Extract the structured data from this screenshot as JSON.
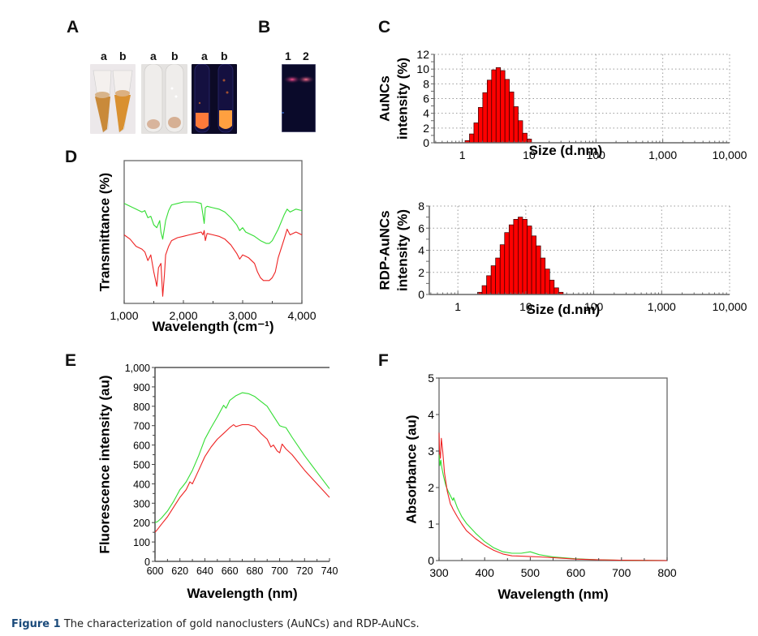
{
  "panels": {
    "A": {
      "letter": "A",
      "photos": [
        {
          "labels": [
            "a",
            "b"
          ],
          "description": "tubes in daylight, orange-brown solutions"
        },
        {
          "labels": [
            "a",
            "b"
          ],
          "description": "tubes with pale precipitate"
        },
        {
          "labels": [
            "a",
            "b"
          ],
          "description": "tubes under UV light, orange fluorescence"
        }
      ]
    },
    "B": {
      "letter": "B",
      "lane_labels": [
        "1",
        "2"
      ],
      "description": "gel with pink bands under UV"
    },
    "C": {
      "letter": "C"
    },
    "D": {
      "letter": "D"
    },
    "E": {
      "letter": "E"
    },
    "F": {
      "letter": "F"
    }
  },
  "caption": {
    "label": "Figure 1",
    "text": "The characterization of gold nanoclusters (AuNCs) and RDP-AuNCs."
  },
  "colors": {
    "bar_fill": "#ff0000",
    "bar_edge": "#330000",
    "green_series": "#33dd33",
    "red_series": "#ee2222",
    "axis": "#666666",
    "grid": "#999999"
  },
  "chart_data": [
    {
      "id": "C-top",
      "type": "bar",
      "title": "",
      "xlabel": "Size (d.nm)",
      "ylabel_lines": [
        "AuNCs",
        "intensity (%)"
      ],
      "xscale": "log",
      "xlim": [
        0.38,
        10000
      ],
      "ylim": [
        0,
        12
      ],
      "xticks": [
        1,
        10,
        100,
        1000,
        10000
      ],
      "xtick_labels": [
        "1",
        "10",
        "100",
        "1,000",
        "10,000"
      ],
      "yticks": [
        0,
        2,
        4,
        6,
        8,
        10,
        12
      ],
      "ytick_labels": [
        "0",
        "2",
        "4",
        "6",
        "8",
        "10",
        "12"
      ],
      "grid": true,
      "bin_start": 1.1,
      "bin_ratio": 1.165,
      "values": [
        0.3,
        1.2,
        2.7,
        4.8,
        6.8,
        8.5,
        9.9,
        10.2,
        9.8,
        8.6,
        6.9,
        4.9,
        3.0,
        1.3,
        0.5
      ]
    },
    {
      "id": "C-bottom",
      "type": "bar",
      "title": "",
      "xlabel": "Size (d.nm)",
      "ylabel_lines": [
        "RDP-AuNCs",
        "intensity (%)"
      ],
      "xscale": "log",
      "xlim": [
        0.38,
        10000
      ],
      "ylim": [
        0,
        8
      ],
      "xticks": [
        1,
        10,
        100,
        1000,
        10000
      ],
      "xtick_labels": [
        "1",
        "10",
        "100",
        "1,000",
        "10,000"
      ],
      "yticks": [
        0,
        2,
        4,
        6,
        8
      ],
      "ytick_labels": [
        "0",
        "2",
        "4",
        "6",
        "8"
      ],
      "grid": true,
      "bin_start": 1.95,
      "bin_ratio": 1.165,
      "values": [
        0.2,
        0.8,
        1.7,
        2.6,
        3.3,
        4.5,
        5.6,
        6.3,
        6.8,
        7.0,
        6.8,
        6.2,
        5.3,
        4.4,
        3.3,
        2.3,
        1.3,
        0.6,
        0.2
      ]
    },
    {
      "id": "D",
      "type": "line",
      "title": "",
      "xlabel": "Wavelength (cm⁻¹)",
      "ylabel": "Transmittance (%)",
      "xlim": [
        1000,
        4000
      ],
      "ylim": [
        0,
        100
      ],
      "xticks": [
        1000,
        2000,
        3000,
        4000
      ],
      "xtick_labels": [
        "1,000",
        "2,000",
        "3,000",
        "4,000"
      ],
      "yticks": [],
      "grid": false,
      "series": [
        {
          "name": "green",
          "color": "#33dd33",
          "x": [
            1000,
            1100,
            1200,
            1300,
            1350,
            1400,
            1450,
            1500,
            1550,
            1600,
            1620,
            1650,
            1700,
            1750,
            1800,
            1900,
            2000,
            2100,
            2200,
            2300,
            2330,
            2350,
            2370,
            2400,
            2500,
            2600,
            2700,
            2800,
            2900,
            2950,
            3000,
            3050,
            3100,
            3200,
            3300,
            3400,
            3450,
            3500,
            3600,
            3700,
            3750,
            3800,
            3900,
            4000
          ],
          "y": [
            70,
            68,
            66,
            64,
            65,
            60,
            61,
            55,
            53,
            58,
            50,
            45,
            58,
            65,
            69,
            70,
            71,
            71,
            71,
            70,
            62,
            56,
            67,
            68,
            67,
            66,
            64,
            60,
            55,
            51,
            53,
            50,
            49,
            47,
            44,
            42,
            42,
            44,
            52,
            62,
            66,
            64,
            66,
            65
          ]
        },
        {
          "name": "red",
          "color": "#ee2222",
          "x": [
            1000,
            1100,
            1200,
            1300,
            1350,
            1400,
            1450,
            1500,
            1520,
            1550,
            1580,
            1620,
            1650,
            1680,
            1700,
            1750,
            1800,
            1900,
            2000,
            2100,
            2200,
            2300,
            2330,
            2350,
            2370,
            2400,
            2500,
            2600,
            2700,
            2800,
            2900,
            2950,
            3000,
            3050,
            3100,
            3200,
            3250,
            3300,
            3350,
            3400,
            3450,
            3500,
            3550,
            3600,
            3700,
            3750,
            3800,
            3900,
            4000
          ],
          "y": [
            48,
            45,
            40,
            38,
            36,
            30,
            34,
            22,
            18,
            12,
            25,
            28,
            5,
            20,
            34,
            40,
            44,
            46,
            47,
            48,
            49,
            50,
            48,
            51,
            44,
            49,
            48,
            47,
            45,
            41,
            35,
            31,
            34,
            33,
            32,
            28,
            22,
            18,
            16,
            16,
            16,
            18,
            22,
            32,
            45,
            52,
            48,
            50,
            48
          ]
        }
      ]
    },
    {
      "id": "E",
      "type": "line",
      "title": "",
      "xlabel": "Wavelength (nm)",
      "ylabel": "Fluorescence intensity (au)",
      "xlim": [
        600,
        740
      ],
      "ylim": [
        0,
        1000
      ],
      "xticks": [
        600,
        620,
        640,
        660,
        680,
        700,
        720,
        740
      ],
      "xtick_labels": [
        "600",
        "620",
        "640",
        "660",
        "680",
        "700",
        "720",
        "740"
      ],
      "yticks": [
        0,
        100,
        200,
        300,
        400,
        500,
        600,
        700,
        800,
        900,
        1000
      ],
      "ytick_labels": [
        "0",
        "100",
        "200",
        "300",
        "400",
        "500",
        "600",
        "700",
        "800",
        "900",
        "1,000"
      ],
      "grid": false,
      "series": [
        {
          "name": "green",
          "color": "#33dd33",
          "x": [
            600,
            602,
            605,
            610,
            615,
            620,
            622,
            625,
            630,
            635,
            640,
            645,
            650,
            655,
            657,
            660,
            665,
            670,
            675,
            680,
            685,
            690,
            695,
            700,
            702,
            705,
            710,
            720,
            730,
            740
          ],
          "y": [
            200,
            205,
            222,
            260,
            310,
            370,
            385,
            410,
            470,
            545,
            630,
            690,
            745,
            805,
            790,
            830,
            855,
            870,
            865,
            850,
            825,
            800,
            750,
            700,
            695,
            690,
            640,
            545,
            460,
            375
          ]
        },
        {
          "name": "red",
          "color": "#ee2222",
          "x": [
            600,
            602,
            605,
            610,
            615,
            620,
            625,
            628,
            630,
            635,
            640,
            645,
            650,
            655,
            660,
            663,
            665,
            670,
            675,
            680,
            685,
            690,
            693,
            695,
            698,
            700,
            702,
            705,
            710,
            720,
            730,
            740
          ],
          "y": [
            150,
            165,
            190,
            230,
            280,
            330,
            370,
            410,
            400,
            470,
            540,
            590,
            630,
            660,
            690,
            705,
            695,
            705,
            705,
            695,
            660,
            630,
            590,
            600,
            570,
            560,
            605,
            580,
            550,
            470,
            400,
            330
          ]
        }
      ]
    },
    {
      "id": "F",
      "type": "line",
      "title": "",
      "xlabel": "Wavelength (nm)",
      "ylabel": "Absorbance (au)",
      "xlim": [
        300,
        800
      ],
      "ylim": [
        0,
        5
      ],
      "xticks": [
        300,
        400,
        500,
        600,
        700,
        800
      ],
      "xtick_labels": [
        "300",
        "400",
        "500",
        "600",
        "700",
        "800"
      ],
      "yticks": [
        0,
        1,
        2,
        3,
        4,
        5
      ],
      "ytick_labels": [
        "0",
        "1",
        "2",
        "3",
        "4",
        "5"
      ],
      "grid": false,
      "series": [
        {
          "name": "green",
          "color": "#33dd33",
          "x": [
            300,
            302,
            304,
            306,
            310,
            315,
            320,
            328,
            330,
            332,
            340,
            350,
            360,
            380,
            400,
            420,
            440,
            460,
            480,
            500,
            520,
            550,
            600,
            650,
            700,
            750,
            800
          ],
          "y": [
            2.9,
            2.6,
            2.75,
            2.55,
            2.3,
            2.05,
            1.9,
            1.7,
            1.65,
            1.72,
            1.45,
            1.2,
            1.02,
            0.75,
            0.52,
            0.35,
            0.24,
            0.2,
            0.2,
            0.24,
            0.16,
            0.1,
            0.05,
            0.02,
            0.01,
            0.005,
            0.0
          ]
        },
        {
          "name": "red",
          "color": "#ee2222",
          "x": [
            300,
            301,
            303,
            305,
            308,
            312,
            318,
            325,
            328,
            330,
            340,
            350,
            360,
            380,
            400,
            420,
            440,
            460,
            480,
            500,
            520,
            550,
            600,
            650,
            700,
            750,
            800
          ],
          "y": [
            3.5,
            3.0,
            2.8,
            3.35,
            3.0,
            2.4,
            1.9,
            1.55,
            1.48,
            1.42,
            1.2,
            1.0,
            0.82,
            0.6,
            0.42,
            0.28,
            0.18,
            0.13,
            0.12,
            0.11,
            0.1,
            0.08,
            0.04,
            0.02,
            0.01,
            0.005,
            0.0
          ]
        }
      ]
    }
  ]
}
